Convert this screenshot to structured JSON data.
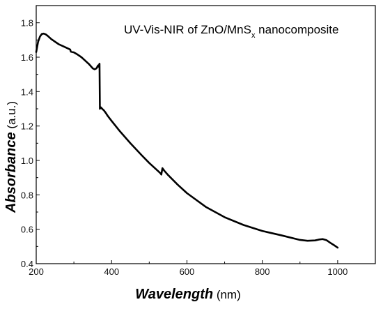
{
  "chart_data": {
    "type": "line",
    "title_main": "UV-Vis-NIR of ZnO/MnS",
    "title_sub": "x",
    "title_tail": " nanocomposite",
    "xlabel_main": "Wavelength",
    "xlabel_unit": " (nm)",
    "ylabel_main": "Absorbance",
    "ylabel_unit": " (a.u.)",
    "xlim": [
      200,
      1100
    ],
    "ylim": [
      0.4,
      1.9
    ],
    "x_ticks": [
      "200",
      "400",
      "600",
      "800",
      "1000"
    ],
    "y_ticks": [
      "0.4",
      "0.6",
      "0.8",
      "1.0",
      "1.2",
      "1.4",
      "1.6",
      "1.8"
    ],
    "series": [
      {
        "color": "#000000",
        "x": [
          200,
          205,
          210,
          215,
          220,
          225,
          230,
          240,
          250,
          260,
          270,
          280,
          290,
          292,
          300,
          310,
          320,
          330,
          340,
          350,
          355,
          360,
          364,
          365,
          368,
          369,
          370,
          372,
          375,
          380,
          385,
          390,
          400,
          420,
          450,
          480,
          500,
          520,
          530,
          532,
          535,
          540,
          550,
          575,
          600,
          650,
          700,
          750,
          800,
          850,
          900,
          920,
          940,
          950,
          960,
          970,
          980,
          990,
          1000
        ],
        "y": [
          1.63,
          1.69,
          1.72,
          1.735,
          1.737,
          1.733,
          1.725,
          1.705,
          1.69,
          1.675,
          1.665,
          1.655,
          1.645,
          1.632,
          1.628,
          1.615,
          1.6,
          1.58,
          1.56,
          1.535,
          1.53,
          1.535,
          1.552,
          1.545,
          1.562,
          1.3,
          1.31,
          1.308,
          1.3,
          1.29,
          1.275,
          1.258,
          1.23,
          1.175,
          1.1,
          1.03,
          0.985,
          0.945,
          0.925,
          0.918,
          0.955,
          0.94,
          0.915,
          0.86,
          0.81,
          0.73,
          0.67,
          0.625,
          0.59,
          0.565,
          0.538,
          0.533,
          0.535,
          0.54,
          0.543,
          0.537,
          0.522,
          0.508,
          0.493
        ]
      }
    ]
  }
}
